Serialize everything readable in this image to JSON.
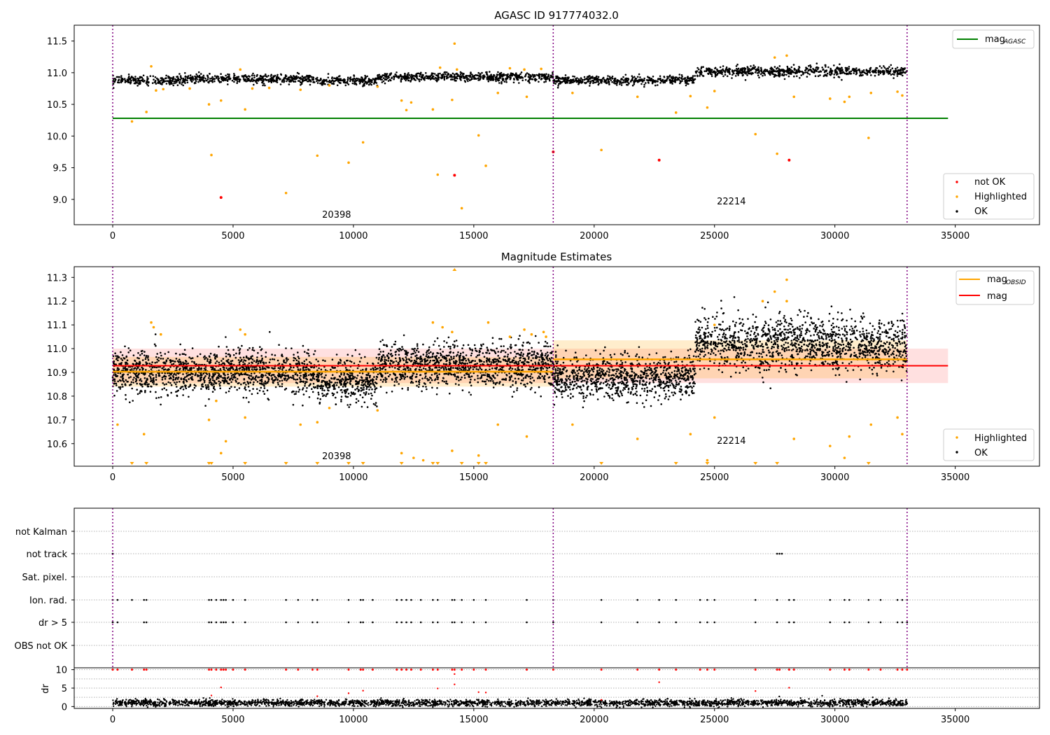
{
  "chart_data": [
    {
      "type": "scatter",
      "title": "AGASC ID 917774032.0",
      "xlabel": "",
      "ylabel": "",
      "xlim": [
        -1600,
        38500
      ],
      "ylim": [
        8.6,
        11.75
      ],
      "xticks": [
        "0",
        "5000",
        "10000",
        "15000",
        "20000",
        "25000",
        "30000",
        "35000"
      ],
      "yticks": [
        "9.0",
        "9.5",
        "10.0",
        "10.5",
        "11.0",
        "11.5"
      ],
      "legend_top": {
        "position": "top-right",
        "entries": [
          {
            "name": "mag",
            "sub": "AGASC",
            "color": "#008000"
          }
        ]
      },
      "legend_bottom": {
        "position": "bottom-right",
        "entries": [
          {
            "name": "not OK",
            "color": "#ff0000"
          },
          {
            "name": "Highlighted",
            "color": "#ffa500"
          },
          {
            "name": "OK",
            "color": "#000000"
          }
        ]
      },
      "obsid_labels": [
        {
          "text": "20398",
          "x": 9300,
          "y": 8.71
        },
        {
          "text": "22214",
          "x": 25700,
          "y": 8.92
        }
      ],
      "obs_boundaries": [
        0,
        18300,
        33000
      ],
      "mag_agasc": 10.28,
      "ok_band": [
        {
          "x0": 0,
          "x1": 3000,
          "mean": 10.88,
          "sd": 0.035
        },
        {
          "x0": 3000,
          "x1": 8500,
          "mean": 10.9,
          "sd": 0.035
        },
        {
          "x0": 8500,
          "x1": 11000,
          "mean": 10.87,
          "sd": 0.035
        },
        {
          "x0": 11000,
          "x1": 18300,
          "mean": 10.93,
          "sd": 0.035
        },
        {
          "x0": 18300,
          "x1": 24200,
          "mean": 10.88,
          "sd": 0.035
        },
        {
          "x0": 24200,
          "x1": 33000,
          "mean": 11.02,
          "sd": 0.04
        }
      ],
      "not_ok": [
        [
          4500,
          9.03
        ],
        [
          14200,
          9.38
        ],
        [
          18300,
          9.75
        ],
        [
          22700,
          9.62
        ],
        [
          28100,
          9.62
        ]
      ],
      "highlighted": [
        [
          800,
          10.23
        ],
        [
          1400,
          10.38
        ],
        [
          4000,
          10.5
        ],
        [
          4100,
          9.7
        ],
        [
          4500,
          10.56
        ],
        [
          5500,
          10.42
        ],
        [
          7200,
          9.1
        ],
        [
          8500,
          9.69
        ],
        [
          9800,
          9.58
        ],
        [
          10400,
          9.9
        ],
        [
          12000,
          10.56
        ],
        [
          12200,
          10.41
        ],
        [
          12400,
          10.53
        ],
        [
          13300,
          10.42
        ],
        [
          13500,
          9.39
        ],
        [
          14100,
          10.57
        ],
        [
          14200,
          11.46
        ],
        [
          14500,
          8.86
        ],
        [
          15200,
          10.01
        ],
        [
          15500,
          9.53
        ],
        [
          16000,
          10.68
        ],
        [
          17200,
          10.62
        ],
        [
          19100,
          10.68
        ],
        [
          20300,
          9.78
        ],
        [
          21800,
          10.62
        ],
        [
          23400,
          10.37
        ],
        [
          24000,
          10.63
        ],
        [
          24700,
          10.45
        ],
        [
          25000,
          10.71
        ],
        [
          26700,
          10.03
        ],
        [
          27500,
          11.24
        ],
        [
          27600,
          9.72
        ],
        [
          28000,
          11.27
        ],
        [
          28300,
          10.62
        ],
        [
          29800,
          10.59
        ],
        [
          30400,
          10.54
        ],
        [
          30600,
          10.62
        ],
        [
          31400,
          9.97
        ],
        [
          31500,
          10.68
        ],
        [
          32600,
          10.7
        ],
        [
          32800,
          10.64
        ],
        [
          1600,
          11.1
        ],
        [
          1800,
          10.72
        ],
        [
          2100,
          10.74
        ],
        [
          5300,
          11.05
        ],
        [
          5800,
          10.75
        ],
        [
          6500,
          10.76
        ],
        [
          9000,
          10.8
        ],
        [
          13600,
          11.08
        ],
        [
          14300,
          11.05
        ],
        [
          16500,
          11.07
        ],
        [
          17100,
          11.05
        ],
        [
          17800,
          11.06
        ],
        [
          11000,
          10.78
        ],
        [
          3200,
          10.75
        ],
        [
          7800,
          10.73
        ]
      ]
    },
    {
      "type": "scatter",
      "title": "Magnitude Estimates",
      "xlabel": "",
      "ylabel": "",
      "xlim": [
        -1600,
        38500
      ],
      "ylim": [
        10.505,
        11.345
      ],
      "xticks": [
        "0",
        "5000",
        "10000",
        "15000",
        "20000",
        "25000",
        "30000",
        "35000"
      ],
      "yticks": [
        "10.6",
        "10.7",
        "10.8",
        "10.9",
        "11.0",
        "11.1",
        "11.2",
        "11.3"
      ],
      "legend_top": {
        "position": "top-right",
        "entries": [
          {
            "name": "mag",
            "sub": "OBSID",
            "color": "#ffa500"
          },
          {
            "name": "mag",
            "sub": "",
            "color": "#ff0000"
          }
        ]
      },
      "legend_bottom": {
        "position": "bottom-right",
        "entries": [
          {
            "name": "Highlighted",
            "color": "#ffa500"
          },
          {
            "name": "OK",
            "color": "#000000"
          }
        ]
      },
      "obsid_labels": [
        {
          "text": "20398",
          "x": 9300,
          "y": 10.535
        },
        {
          "text": "22214",
          "x": 25700,
          "y": 10.6
        }
      ],
      "obs_boundaries": [
        0,
        18300,
        33000
      ],
      "mag": 10.928,
      "mag_band": [
        10.855,
        11.0
      ],
      "mag_band_x": [
        0,
        34700
      ],
      "mag_obsid": [
        {
          "x0": 0,
          "x1": 18300,
          "value": 10.903,
          "band": [
            10.84,
            10.965
          ]
        },
        {
          "x0": 18300,
          "x1": 33000,
          "value": 10.955,
          "band": [
            10.875,
            11.035
          ]
        }
      ],
      "ok_band": [
        {
          "x0": 0,
          "x1": 3000,
          "mean": 10.9,
          "sd": 0.045
        },
        {
          "x0": 3000,
          "x1": 8500,
          "mean": 10.9,
          "sd": 0.045
        },
        {
          "x0": 8500,
          "x1": 11000,
          "mean": 10.86,
          "sd": 0.045
        },
        {
          "x0": 11000,
          "x1": 18300,
          "mean": 10.93,
          "sd": 0.045
        },
        {
          "x0": 18300,
          "x1": 24200,
          "mean": 10.88,
          "sd": 0.045
        },
        {
          "x0": 24200,
          "x1": 33000,
          "mean": 11.02,
          "sd": 0.055
        }
      ],
      "highlighted": [
        [
          1600,
          11.11
        ],
        [
          1700,
          11.09
        ],
        [
          2000,
          11.06
        ],
        [
          5300,
          11.08
        ],
        [
          5500,
          11.06
        ],
        [
          13300,
          11.11
        ],
        [
          13700,
          11.09
        ],
        [
          14100,
          11.07
        ],
        [
          15600,
          11.11
        ],
        [
          16500,
          11.05
        ],
        [
          17100,
          11.08
        ],
        [
          17400,
          11.06
        ],
        [
          17900,
          11.07
        ],
        [
          18000,
          11.05
        ],
        [
          25000,
          11.1
        ],
        [
          27000,
          11.2
        ],
        [
          27500,
          11.24
        ],
        [
          28000,
          11.29
        ],
        [
          28000,
          11.2
        ],
        [
          200,
          10.68
        ],
        [
          1300,
          10.64
        ],
        [
          4000,
          10.7
        ],
        [
          4300,
          10.78
        ],
        [
          4500,
          10.56
        ],
        [
          4700,
          10.61
        ],
        [
          5500,
          10.71
        ],
        [
          7800,
          10.68
        ],
        [
          8500,
          10.69
        ],
        [
          9000,
          10.75
        ],
        [
          11000,
          10.74
        ],
        [
          12000,
          10.56
        ],
        [
          12500,
          10.54
        ],
        [
          12900,
          10.53
        ],
        [
          14100,
          10.57
        ],
        [
          15200,
          10.55
        ],
        [
          16000,
          10.68
        ],
        [
          17200,
          10.63
        ],
        [
          19100,
          10.68
        ],
        [
          21800,
          10.62
        ],
        [
          24000,
          10.64
        ],
        [
          24700,
          10.53
        ],
        [
          25000,
          10.71
        ],
        [
          28300,
          10.62
        ],
        [
          29800,
          10.59
        ],
        [
          30400,
          10.54
        ],
        [
          30600,
          10.63
        ],
        [
          31500,
          10.68
        ],
        [
          32600,
          10.71
        ],
        [
          32800,
          10.64
        ]
      ],
      "highlighted_offscale_low": [
        800,
        1400,
        4000,
        4100,
        5500,
        7200,
        8500,
        9800,
        10400,
        12000,
        13300,
        13500,
        14500,
        15200,
        15500,
        20300,
        23400,
        24700,
        26700,
        27600,
        31400
      ],
      "highlighted_offscale_high": [
        14200
      ]
    },
    {
      "type": "scatter",
      "title": "",
      "xlabel": "",
      "ylabel": "",
      "xlim": [
        -1600,
        38500
      ],
      "xticks": [
        "0",
        "5000",
        "10000",
        "15000",
        "20000",
        "25000",
        "30000",
        "35000"
      ],
      "flag_rows": [
        "not Kalman",
        "not track",
        "Sat. pixel.",
        "Ion. rad.",
        "dr > 5",
        "OBS not OK"
      ],
      "obs_boundaries": [
        0,
        18300,
        33000
      ],
      "flags": {
        "not track": [
          0,
          27600,
          27700,
          27800
        ],
        "Ion. rad.": [
          0,
          200,
          800,
          1300,
          1400,
          4000,
          4100,
          4300,
          4500,
          4600,
          4700,
          5000,
          5500,
          7200,
          7700,
          8300,
          8500,
          9800,
          10300,
          10400,
          10800,
          11800,
          12000,
          12200,
          12400,
          12800,
          13300,
          13500,
          14100,
          14200,
          14500,
          15000,
          15500,
          17200,
          18300,
          20300,
          21800,
          22700,
          23400,
          24400,
          24700,
          25000,
          26700,
          27600,
          28100,
          28300,
          29800,
          30400,
          30600,
          31400,
          31900,
          32600,
          32800,
          33000
        ],
        "dr > 5": [
          0,
          200,
          1300,
          1400,
          4000,
          4100,
          4300,
          4500,
          4600,
          4700,
          5000,
          5500,
          7200,
          7700,
          8300,
          8500,
          9800,
          10300,
          10400,
          10800,
          11800,
          12000,
          12200,
          12400,
          12800,
          13300,
          13500,
          14100,
          14200,
          14500,
          15000,
          15500,
          17200,
          18300,
          20300,
          21800,
          22700,
          23400,
          24400,
          24700,
          25000,
          26700,
          27600,
          28100,
          28300,
          29800,
          30400,
          30600,
          31400,
          31900,
          32600,
          32800,
          33000
        ]
      }
    },
    {
      "type": "scatter",
      "title": "",
      "xlabel": "",
      "ylabel": "dr",
      "xlim": [
        -1600,
        38500
      ],
      "ylim": [
        -0.5,
        10.5
      ],
      "xticks": [
        "0",
        "5000",
        "10000",
        "15000",
        "20000",
        "25000",
        "30000",
        "35000"
      ],
      "yticks": [
        "0",
        "5",
        "10"
      ],
      "obs_boundaries": [
        0,
        18300,
        33000
      ],
      "ok_band": [
        {
          "x0": 0,
          "x1": 33000,
          "mean": 1.0,
          "sd": 0.45
        }
      ],
      "not_ok_clipped": [
        0,
        200,
        800,
        1300,
        1400,
        4000,
        4100,
        4300,
        4500,
        4600,
        4700,
        5000,
        5500,
        7200,
        7700,
        8300,
        8500,
        9800,
        10300,
        10400,
        10800,
        11800,
        12000,
        12200,
        12400,
        12800,
        13300,
        13500,
        14100,
        14200,
        14500,
        15000,
        15500,
        17200,
        18300,
        20300,
        21800,
        22700,
        23400,
        24400,
        24700,
        25000,
        26700,
        27600,
        27700,
        28100,
        28300,
        29800,
        30400,
        30600,
        31400,
        31900,
        32600,
        32800,
        33000
      ],
      "not_ok_values": [
        [
          4100,
          3.0
        ],
        [
          4500,
          5.2
        ],
        [
          8500,
          2.8
        ],
        [
          9800,
          3.6
        ],
        [
          10400,
          4.3
        ],
        [
          13500,
          4.9
        ],
        [
          14200,
          8.8
        ],
        [
          14200,
          6.0
        ],
        [
          15200,
          3.9
        ],
        [
          15500,
          3.8
        ],
        [
          22700,
          6.6
        ],
        [
          26700,
          4.2
        ],
        [
          28100,
          5.1
        ],
        [
          20300,
          1.8
        ]
      ]
    }
  ]
}
